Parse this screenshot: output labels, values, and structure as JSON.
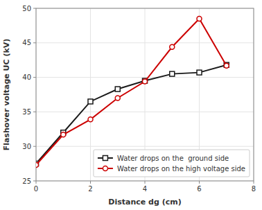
{
  "chart_data": {
    "type": "line",
    "x_label": "Distance dg (cm)",
    "y_label": "Flashover voltage UC (kV)",
    "x": [
      0,
      1,
      2,
      3,
      4,
      5,
      6,
      7
    ],
    "series": [
      {
        "name": "Water drops on the  ground side",
        "color": "#1a1a1a",
        "marker": "square",
        "line_style": "solid",
        "values": [
          27.5,
          32.0,
          36.5,
          38.3,
          39.5,
          40.5,
          40.7,
          41.8
        ]
      },
      {
        "name": "Water drops on the high voltage side",
        "color": "#cc0000",
        "marker": "circle",
        "line_style": "solid",
        "values": [
          27.3,
          31.7,
          33.9,
          37.0,
          39.4,
          44.4,
          48.5,
          41.7
        ]
      }
    ],
    "xlim": [
      0,
      8
    ],
    "ylim": [
      25,
      50
    ],
    "xticks": [
      0,
      2,
      4,
      6,
      8
    ],
    "yticks": [
      25,
      30,
      35,
      40,
      45,
      50
    ],
    "grid": true,
    "legend": "lower right"
  }
}
